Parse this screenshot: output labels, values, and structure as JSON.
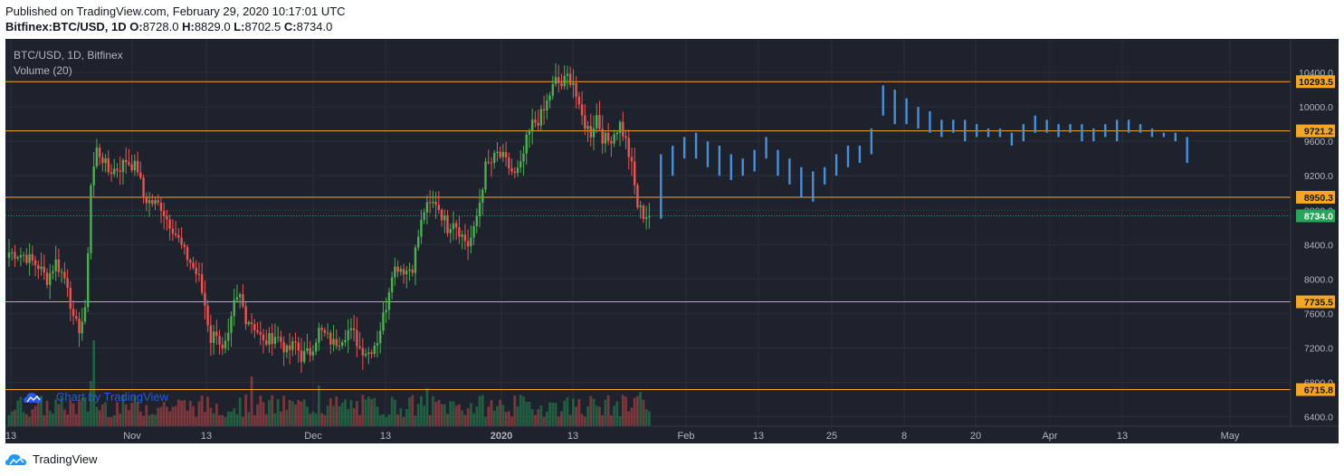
{
  "header": {
    "published": "Published on TradingView.com, February 29, 2020 10:17:01 UTC",
    "symbol": "Bitfinex:BTC/USD, 1D",
    "o_label": "O:",
    "o": "8728.0",
    "h_label": "H:",
    "h": "8829.0",
    "l_label": "L:",
    "l": "8702.5",
    "c_label": "C:",
    "c": "8734.0"
  },
  "chart_info": {
    "title": "BTC/USD, 1D, Bitfinex",
    "volume_label": "Volume (20)",
    "watermark": "Chart by TradingView"
  },
  "footer": {
    "brand": "TradingView"
  },
  "colors": {
    "background": "#1e222d",
    "up": "#26a69a",
    "up_candle": "#4caf50",
    "down": "#ef5350",
    "projection": "#4a90d9",
    "level": "#f5a623",
    "current": "#26a65b"
  },
  "chart_data": {
    "type": "candlestick",
    "y_ticks": [
      "10400.0",
      "10000.0",
      "9600.0",
      "9200.0",
      "8800.0",
      "8400.0",
      "8000.0",
      "7600.0",
      "7200.0",
      "6800.0",
      "6400.0"
    ],
    "x_labels": [
      "13",
      "Nov",
      "13",
      "Dec",
      "13",
      "2020",
      "13",
      "Feb",
      "13",
      "25",
      "8",
      "20",
      "Apr",
      "13",
      "May"
    ],
    "ylim": [
      6290,
      10790
    ],
    "levels": [
      {
        "value": 10293.5,
        "label": "10293.5"
      },
      {
        "value": 9721.2,
        "label": "9721.2"
      },
      {
        "value": 8950.3,
        "label": "8950.3"
      },
      {
        "value": 7735.5,
        "label": "7735.5"
      },
      {
        "value": 6715.8,
        "label": "6715.8"
      }
    ],
    "current_price": {
      "value": 8734.0,
      "label": "8734.0"
    },
    "close_waypoints": [
      [
        0,
        8310
      ],
      [
        5,
        8280
      ],
      [
        10,
        8150
      ],
      [
        13,
        8000
      ],
      [
        16,
        8200
      ],
      [
        20,
        7950
      ],
      [
        22,
        7500
      ],
      [
        24,
        7430
      ],
      [
        26,
        7600
      ],
      [
        28,
        9100
      ],
      [
        30,
        9500
      ],
      [
        32,
        9400
      ],
      [
        34,
        9250
      ],
      [
        38,
        9300
      ],
      [
        40,
        9380
      ],
      [
        44,
        9280
      ],
      [
        46,
        8950
      ],
      [
        48,
        8900
      ],
      [
        52,
        8850
      ],
      [
        54,
        8700
      ],
      [
        56,
        8600
      ],
      [
        60,
        8300
      ],
      [
        62,
        8200
      ],
      [
        65,
        8000
      ],
      [
        67,
        7700
      ],
      [
        69,
        7300
      ],
      [
        71,
        7400
      ],
      [
        73,
        7150
      ],
      [
        75,
        7300
      ],
      [
        77,
        7700
      ],
      [
        79,
        7800
      ],
      [
        81,
        7550
      ],
      [
        83,
        7500
      ],
      [
        85,
        7400
      ],
      [
        87,
        7250
      ],
      [
        89,
        7300
      ],
      [
        91,
        7350
      ],
      [
        93,
        7280
      ],
      [
        95,
        7150
      ],
      [
        98,
        7250
      ],
      [
        100,
        7100
      ],
      [
        103,
        7150
      ],
      [
        106,
        7400
      ],
      [
        108,
        7350
      ],
      [
        111,
        7250
      ],
      [
        113,
        7300
      ],
      [
        116,
        7400
      ],
      [
        118,
        7350
      ],
      [
        120,
        7200
      ],
      [
        123,
        7150
      ],
      [
        126,
        7300
      ],
      [
        129,
        7700
      ],
      [
        131,
        8100
      ],
      [
        133,
        8150
      ],
      [
        136,
        8100
      ],
      [
        138,
        8150
      ],
      [
        140,
        8500
      ],
      [
        142,
        8800
      ],
      [
        144,
        8850
      ],
      [
        146,
        8900
      ],
      [
        148,
        8750
      ],
      [
        150,
        8600
      ],
      [
        152,
        8700
      ],
      [
        155,
        8500
      ],
      [
        157,
        8400
      ],
      [
        159,
        8550
      ],
      [
        161,
        8900
      ],
      [
        163,
        9300
      ],
      [
        165,
        9350
      ],
      [
        167,
        9450
      ],
      [
        169,
        9400
      ],
      [
        171,
        9300
      ],
      [
        173,
        9200
      ],
      [
        175,
        9300
      ],
      [
        177,
        9600
      ],
      [
        179,
        9800
      ],
      [
        181,
        9850
      ],
      [
        183,
        9950
      ],
      [
        185,
        10150
      ],
      [
        187,
        10300
      ],
      [
        189,
        10250
      ],
      [
        191,
        10350
      ],
      [
        193,
        10300
      ],
      [
        195,
        9950
      ],
      [
        197,
        9800
      ],
      [
        199,
        9700
      ],
      [
        201,
        9900
      ],
      [
        203,
        9650
      ],
      [
        205,
        9600
      ],
      [
        207,
        9700
      ],
      [
        209,
        9800
      ],
      [
        211,
        9600
      ],
      [
        213,
        9300
      ],
      [
        215,
        8850
      ],
      [
        217,
        8750
      ],
      [
        219,
        8734
      ]
    ],
    "projection_bars": [
      [
        223,
        9450,
        8700
      ],
      [
        227,
        9550,
        9200
      ],
      [
        231,
        9650,
        9400
      ],
      [
        235,
        9700,
        9400
      ],
      [
        239,
        9600,
        9300
      ],
      [
        243,
        9550,
        9200
      ],
      [
        247,
        9450,
        9150
      ],
      [
        251,
        9400,
        9200
      ],
      [
        255,
        9500,
        9250
      ],
      [
        259,
        9650,
        9400
      ],
      [
        263,
        9500,
        9200
      ],
      [
        267,
        9400,
        9100
      ],
      [
        271,
        9300,
        8950
      ],
      [
        275,
        9250,
        8900
      ],
      [
        279,
        9300,
        9100
      ],
      [
        283,
        9450,
        9200
      ],
      [
        287,
        9550,
        9300
      ],
      [
        291,
        9550,
        9350
      ],
      [
        295,
        9750,
        9450
      ],
      [
        299,
        10250,
        9900
      ],
      [
        303,
        10200,
        9800
      ],
      [
        307,
        10100,
        9800
      ],
      [
        311,
        10000,
        9750
      ],
      [
        315,
        9950,
        9700
      ],
      [
        319,
        9850,
        9650
      ],
      [
        323,
        9850,
        9700
      ],
      [
        327,
        9850,
        9600
      ],
      [
        331,
        9800,
        9650
      ],
      [
        335,
        9750,
        9650
      ],
      [
        339,
        9750,
        9650
      ],
      [
        343,
        9700,
        9550
      ],
      [
        347,
        9800,
        9600
      ],
      [
        351,
        9900,
        9700
      ],
      [
        355,
        9850,
        9700
      ],
      [
        359,
        9800,
        9650
      ],
      [
        363,
        9800,
        9700
      ],
      [
        367,
        9800,
        9600
      ],
      [
        371,
        9750,
        9600
      ],
      [
        375,
        9800,
        9650
      ],
      [
        379,
        9850,
        9600
      ],
      [
        383,
        9850,
        9700
      ],
      [
        387,
        9800,
        9700
      ],
      [
        391,
        9750,
        9650
      ],
      [
        395,
        9700,
        9650
      ],
      [
        399,
        9700,
        9600
      ],
      [
        403,
        9650,
        9350
      ]
    ]
  }
}
